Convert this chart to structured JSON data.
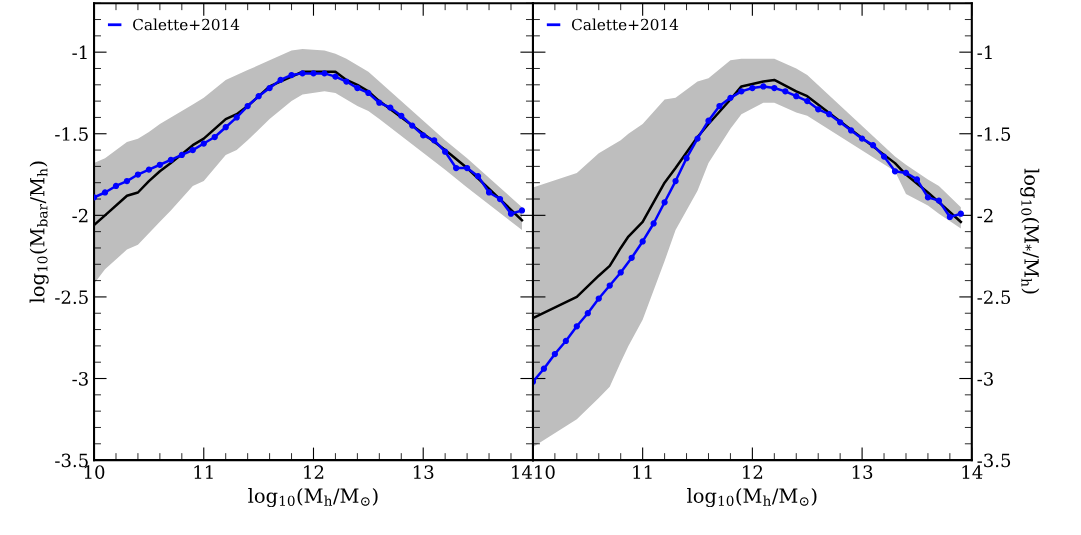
{
  "chart_data": [
    {
      "type": "line",
      "xlabel": "log$_{10}$(M$_{h}$/M$_{⊙}$)",
      "ylabel": "log$_{10}$(M$_{bar}$/M$_{h}$)",
      "xlim": [
        10,
        14
      ],
      "ylim": [
        -3.5,
        -0.7
      ],
      "xticks": [
        10,
        11,
        12,
        13,
        14
      ],
      "yticks": [
        -1,
        -1.5,
        -2,
        -2.5,
        -3,
        -3.5
      ],
      "grid": false,
      "legend": "top left",
      "series": [
        {
          "color": "#000000",
          "marker": "none",
          "x": [
            10.0,
            10.1,
            10.3,
            10.4,
            10.5,
            10.6,
            10.7,
            10.9,
            11.0,
            11.2,
            11.3,
            11.4,
            11.6,
            11.8,
            11.9,
            12.1,
            12.2,
            12.3,
            12.4,
            12.5,
            12.6,
            13.2,
            13.4,
            13.9
          ],
          "values": [
            -2.06,
            -2.0,
            -1.88,
            -1.86,
            -1.79,
            -1.73,
            -1.68,
            -1.57,
            -1.53,
            -1.41,
            -1.38,
            -1.33,
            -1.21,
            -1.15,
            -1.12,
            -1.12,
            -1.12,
            -1.17,
            -1.2,
            -1.24,
            -1.3,
            -1.6,
            -1.71,
            -2.03
          ],
          "upper": [
            -1.68,
            -1.65,
            -1.55,
            -1.53,
            -1.49,
            -1.44,
            -1.4,
            -1.32,
            -1.28,
            -1.17,
            -1.14,
            -1.11,
            -1.05,
            -0.99,
            -0.98,
            -0.99,
            -1.01,
            -1.04,
            -1.08,
            -1.12,
            -1.18,
            -1.54,
            -1.65,
            -1.95
          ],
          "lower": [
            -2.42,
            -2.33,
            -2.21,
            -2.18,
            -2.11,
            -2.04,
            -1.97,
            -1.82,
            -1.79,
            -1.63,
            -1.6,
            -1.54,
            -1.41,
            -1.3,
            -1.26,
            -1.24,
            -1.25,
            -1.29,
            -1.33,
            -1.36,
            -1.41,
            -1.72,
            -1.83,
            -2.09
          ]
        },
        {
          "name": "Calette+2014",
          "color": "#0000ff",
          "marker": "circle",
          "x": [
            10.0,
            10.1,
            10.2,
            10.3,
            10.4,
            10.5,
            10.6,
            10.7,
            10.8,
            10.9,
            11.0,
            11.1,
            11.2,
            11.3,
            11.4,
            11.5,
            11.6,
            11.7,
            11.8,
            11.9,
            12.0,
            12.1,
            12.2,
            12.3,
            12.4,
            12.5,
            12.6,
            12.7,
            12.8,
            12.9,
            13.0,
            13.1,
            13.2,
            13.3,
            13.4,
            13.5,
            13.6,
            13.7,
            13.8,
            13.9
          ],
          "values": [
            -1.89,
            -1.86,
            -1.82,
            -1.79,
            -1.75,
            -1.72,
            -1.69,
            -1.66,
            -1.63,
            -1.6,
            -1.56,
            -1.52,
            -1.46,
            -1.4,
            -1.33,
            -1.27,
            -1.22,
            -1.17,
            -1.14,
            -1.13,
            -1.13,
            -1.13,
            -1.15,
            -1.18,
            -1.22,
            -1.25,
            -1.31,
            -1.34,
            -1.39,
            -1.45,
            -1.51,
            -1.54,
            -1.61,
            -1.71,
            -1.71,
            -1.76,
            -1.86,
            -1.9,
            -1.99,
            -1.97
          ]
        }
      ]
    },
    {
      "type": "line",
      "xlabel": "log$_{10}$(M$_{h}$/M$_{⊙}$)",
      "y2label": "log$_{10}$(M$_{*}$/M$_{h}$)",
      "xlim": [
        10,
        14
      ],
      "y2lim": [
        -3.5,
        -0.7
      ],
      "xticks": [
        10,
        11,
        12,
        13,
        14
      ],
      "y2ticks": [
        -1,
        -1.5,
        -2,
        -2.5,
        -3,
        -3.5
      ],
      "grid": false,
      "legend": "top left",
      "series": [
        {
          "axis": "y2",
          "color": "#000000",
          "marker": "none",
          "x": [
            10.0,
            10.4,
            10.6,
            10.7,
            10.8,
            10.87,
            11.0,
            11.2,
            11.3,
            11.5,
            11.6,
            11.8,
            11.9,
            12.1,
            12.2,
            12.4,
            12.5,
            13.3,
            13.4,
            13.6,
            13.7,
            13.9
          ],
          "values": [
            -2.63,
            -2.5,
            -2.37,
            -2.31,
            -2.2,
            -2.13,
            -2.04,
            -1.8,
            -1.71,
            -1.52,
            -1.44,
            -1.29,
            -1.21,
            -1.18,
            -1.17,
            -1.24,
            -1.27,
            -1.68,
            -1.75,
            -1.86,
            -1.92,
            -2.04
          ],
          "upper": [
            -1.83,
            -1.74,
            -1.62,
            -1.58,
            -1.54,
            -1.5,
            -1.44,
            -1.29,
            -1.28,
            -1.18,
            -1.16,
            -1.05,
            -1.04,
            -1.04,
            -1.04,
            -1.1,
            -1.14,
            -1.64,
            -1.69,
            -1.78,
            -1.82,
            -1.95
          ],
          "lower": [
            -3.42,
            -3.25,
            -3.12,
            -3.05,
            -2.9,
            -2.8,
            -2.64,
            -2.28,
            -2.09,
            -1.85,
            -1.68,
            -1.47,
            -1.38,
            -1.31,
            -1.31,
            -1.37,
            -1.39,
            -1.73,
            -1.87,
            -1.94,
            -1.99,
            -2.08
          ]
        },
        {
          "axis": "y2",
          "name": "Calette+2014",
          "color": "#0000ff",
          "marker": "circle",
          "x": [
            10.0,
            10.1,
            10.2,
            10.3,
            10.4,
            10.5,
            10.6,
            10.7,
            10.8,
            10.9,
            11.0,
            11.1,
            11.2,
            11.3,
            11.4,
            11.5,
            11.6,
            11.7,
            11.8,
            11.9,
            12.0,
            12.1,
            12.2,
            12.3,
            12.4,
            12.5,
            12.6,
            12.7,
            12.8,
            12.9,
            13.0,
            13.1,
            13.2,
            13.3,
            13.4,
            13.5,
            13.6,
            13.7,
            13.8,
            13.9
          ],
          "values": [
            -3.02,
            -2.94,
            -2.85,
            -2.77,
            -2.68,
            -2.6,
            -2.51,
            -2.43,
            -2.35,
            -2.26,
            -2.16,
            -2.05,
            -1.92,
            -1.79,
            -1.65,
            -1.53,
            -1.42,
            -1.33,
            -1.28,
            -1.24,
            -1.22,
            -1.21,
            -1.22,
            -1.24,
            -1.27,
            -1.3,
            -1.35,
            -1.38,
            -1.43,
            -1.48,
            -1.53,
            -1.57,
            -1.64,
            -1.73,
            -1.74,
            -1.78,
            -1.89,
            -1.91,
            -2.01,
            -1.99
          ]
        }
      ]
    }
  ]
}
